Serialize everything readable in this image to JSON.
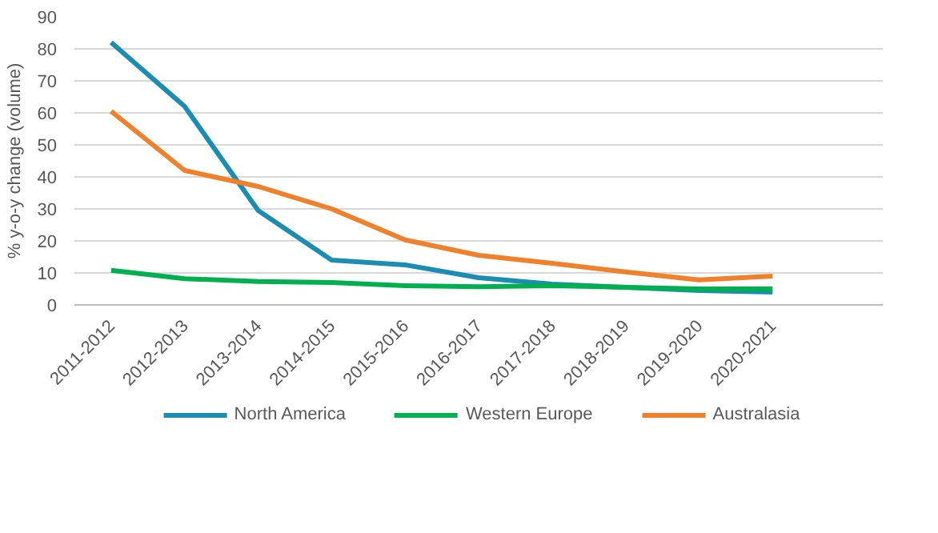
{
  "chart_data": {
    "type": "line",
    "ylabel": "% y-o-y change (volume)",
    "categories": [
      "2011-2012",
      "2012-2013",
      "2013-2014",
      "2014-2015",
      "2015-2016",
      "2016-2017",
      "2017-2018",
      "2018-2019",
      "2019-2020",
      "2020-2021",
      null
    ],
    "series": [
      {
        "name": "North America",
        "color": "#1b8db3",
        "values": [
          82,
          62,
          29.5,
          14,
          12.5,
          8.5,
          6.5,
          5.5,
          4.5,
          4,
          null
        ]
      },
      {
        "name": "Western Europe",
        "color": "#00b050",
        "values": [
          10.8,
          8.2,
          7.3,
          7,
          6,
          5.7,
          6,
          5.5,
          5,
          5,
          null
        ]
      },
      {
        "name": "Australasia",
        "color": "#f0802a",
        "values": [
          60.5,
          42,
          37,
          30,
          20.3,
          15.5,
          13,
          10.3,
          7.8,
          9,
          null
        ]
      }
    ],
    "ylim": [
      0,
      90
    ],
    "yticks": [
      0,
      10,
      20,
      30,
      40,
      50,
      60,
      70,
      80,
      90
    ],
    "grid": "y",
    "legend": "bottom",
    "marker": "none",
    "line_style": "solid"
  }
}
